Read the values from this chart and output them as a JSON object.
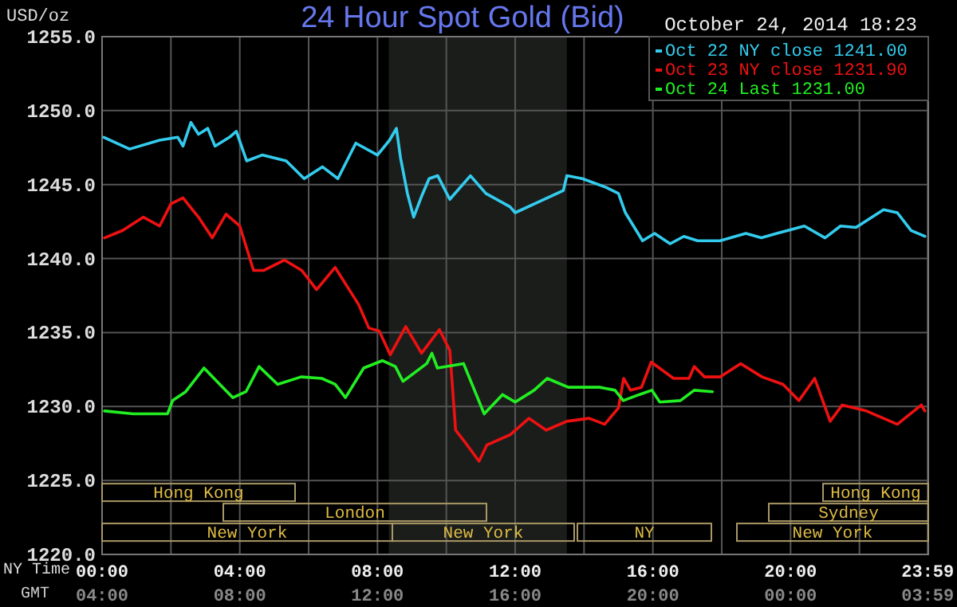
{
  "chart_data": {
    "type": "line",
    "title": "24 Hour Spot Gold (Bid)",
    "subtitle": "October 24, 2014 18:23",
    "ylabel": "USD/oz",
    "xlabel": "NY Time",
    "x2label": "GMT",
    "xlim": [
      0,
      24
    ],
    "xticks": [
      {
        "value": 0,
        "label": "00:00"
      },
      {
        "value": 2,
        "label": null
      },
      {
        "value": 4,
        "label": "04:00"
      },
      {
        "value": 6,
        "label": null
      },
      {
        "value": 8,
        "label": "08:00"
      },
      {
        "value": 10,
        "label": null
      },
      {
        "value": 12,
        "label": "12:00"
      },
      {
        "value": 14,
        "label": null
      },
      {
        "value": 16,
        "label": "16:00"
      },
      {
        "value": 18,
        "label": null
      },
      {
        "value": 20,
        "label": "20:00"
      },
      {
        "value": 22,
        "label": null
      },
      {
        "value": 23.983,
        "label": "23:59"
      }
    ],
    "x2lim": [
      "2014-10-24T04:00",
      "2014-10-25T04:00"
    ],
    "x2ticks": [
      {
        "value": "2014-10-24T04:00",
        "label": "04:00"
      },
      {
        "value": "2014-10-24T08:00",
        "label": "08:00"
      },
      {
        "value": "2014-10-24T12:00",
        "label": "12:00"
      },
      {
        "value": "2014-10-24T16:00",
        "label": "16:00"
      },
      {
        "value": "2014-10-24T20:00",
        "label": "20:00"
      },
      {
        "value": "2014-10-25T00:00",
        "label": "00:00"
      },
      {
        "value": "2014-10-25T03:59",
        "label": "03:59"
      }
    ],
    "ylim": [
      1220,
      1255
    ],
    "yticks": [
      {
        "value": 1220,
        "label": "1220.0"
      },
      {
        "value": 1225,
        "label": "1225.0"
      },
      {
        "value": 1230,
        "label": "1230.0"
      },
      {
        "value": 1235,
        "label": "1235.0"
      },
      {
        "value": 1240,
        "label": "1240.0"
      },
      {
        "value": 1245,
        "label": "1245.0"
      },
      {
        "value": 1250,
        "label": "1250.0"
      },
      {
        "value": 1255,
        "label": "1255.0"
      }
    ],
    "grid": true,
    "legend": "top right",
    "line_style": "solid",
    "marker": "none",
    "bands": [
      {
        "axis": "x",
        "from": 8.33,
        "to": 13.5,
        "color": "#1b1d1b"
      }
    ],
    "annotations": [
      "Hong Kong",
      "London",
      "New York",
      "New York",
      "NY",
      "Hong Kong",
      "Sydney",
      "New York"
    ],
    "series": [
      {
        "name": "Oct 22 NY close 1241.00",
        "color": "#33ccee",
        "x": [
          0.05,
          0.8,
          1.67,
          2.2,
          2.35,
          2.58,
          2.8,
          3.07,
          3.28,
          3.7,
          3.9,
          4.2,
          4.65,
          5.35,
          5.87,
          6.4,
          6.85,
          7.37,
          8.0,
          8.35,
          8.55,
          8.67,
          8.87,
          9.05,
          9.28,
          9.5,
          9.75,
          10.1,
          10.7,
          11.15,
          11.85,
          12.0,
          13.4,
          13.5,
          13.95,
          14.65,
          15.0,
          15.2,
          15.7,
          16.05,
          16.5,
          16.9,
          17.3,
          17.95,
          18.7,
          19.15,
          19.6,
          20.4,
          21.0,
          21.45,
          21.9,
          22.7,
          23.1,
          23.5,
          23.9
        ],
        "values": [
          1248.2,
          1247.4,
          1248.0,
          1248.2,
          1247.6,
          1249.2,
          1248.4,
          1248.8,
          1247.6,
          1248.2,
          1248.6,
          1246.6,
          1247.0,
          1246.6,
          1245.4,
          1246.2,
          1245.4,
          1247.8,
          1247.0,
          1248.0,
          1248.8,
          1246.8,
          1244.4,
          1242.8,
          1244.2,
          1245.4,
          1245.6,
          1244.0,
          1245.6,
          1244.4,
          1243.5,
          1243.1,
          1244.6,
          1245.6,
          1245.4,
          1244.8,
          1244.4,
          1243.1,
          1241.2,
          1241.7,
          1241.0,
          1241.5,
          1241.2,
          1241.2,
          1241.7,
          1241.4,
          1241.7,
          1242.2,
          1241.4,
          1242.2,
          1242.1,
          1243.3,
          1243.1,
          1241.9,
          1241.5
        ]
      },
      {
        "name": "Oct 23 NY close 1231.90",
        "color": "#ee1111",
        "x": [
          0.07,
          0.6,
          1.2,
          1.67,
          2.0,
          2.35,
          2.8,
          3.2,
          3.6,
          4.0,
          4.4,
          4.7,
          5.3,
          5.8,
          6.23,
          6.77,
          7.45,
          7.75,
          8.05,
          8.37,
          8.82,
          9.28,
          9.8,
          10.1,
          10.27,
          10.57,
          10.95,
          11.18,
          11.86,
          12.4,
          12.9,
          13.5,
          14.15,
          14.6,
          15.0,
          15.15,
          15.35,
          15.67,
          15.95,
          16.6,
          17.05,
          17.2,
          17.5,
          17.95,
          18.55,
          19.17,
          19.78,
          20.24,
          20.7,
          21.15,
          21.5,
          22.2,
          23.1,
          23.8,
          23.9
        ],
        "values": [
          1241.4,
          1241.9,
          1242.8,
          1242.2,
          1243.7,
          1244.1,
          1242.8,
          1241.4,
          1243.0,
          1242.2,
          1239.2,
          1239.2,
          1239.9,
          1239.2,
          1237.9,
          1239.4,
          1236.9,
          1235.3,
          1235.1,
          1233.5,
          1235.4,
          1233.6,
          1235.2,
          1233.8,
          1228.4,
          1227.5,
          1226.3,
          1227.4,
          1228.1,
          1229.2,
          1228.4,
          1229.0,
          1229.2,
          1228.8,
          1229.9,
          1231.9,
          1231.1,
          1231.3,
          1233.0,
          1231.9,
          1231.9,
          1232.7,
          1232.0,
          1232.0,
          1232.9,
          1232.0,
          1231.5,
          1230.4,
          1231.9,
          1229.0,
          1230.1,
          1229.7,
          1228.8,
          1230.1,
          1229.7
        ]
      },
      {
        "name": "Oct 24 Last 1231.00",
        "color": "#22ee22",
        "x": [
          0.07,
          0.9,
          1.9,
          2.05,
          2.43,
          2.96,
          3.42,
          3.8,
          4.18,
          4.56,
          5.1,
          5.78,
          6.38,
          6.77,
          7.07,
          7.6,
          8.14,
          8.52,
          8.74,
          9.43,
          9.58,
          9.74,
          10.5,
          11.1,
          11.63,
          12.0,
          12.55,
          12.93,
          13.54,
          14.45,
          14.9,
          15.14,
          15.6,
          15.97,
          16.2,
          16.8,
          17.2,
          17.73
        ],
        "values": [
          1229.7,
          1229.5,
          1229.5,
          1230.4,
          1231.0,
          1232.6,
          1231.5,
          1230.6,
          1231.0,
          1232.7,
          1231.5,
          1232.0,
          1231.9,
          1231.5,
          1230.6,
          1232.6,
          1233.1,
          1232.7,
          1231.7,
          1232.9,
          1233.6,
          1232.6,
          1232.9,
          1229.5,
          1230.8,
          1230.3,
          1231.1,
          1231.9,
          1231.3,
          1231.3,
          1231.1,
          1230.4,
          1230.8,
          1231.1,
          1230.3,
          1230.4,
          1231.1,
          1231.0
        ]
      }
    ]
  }
}
